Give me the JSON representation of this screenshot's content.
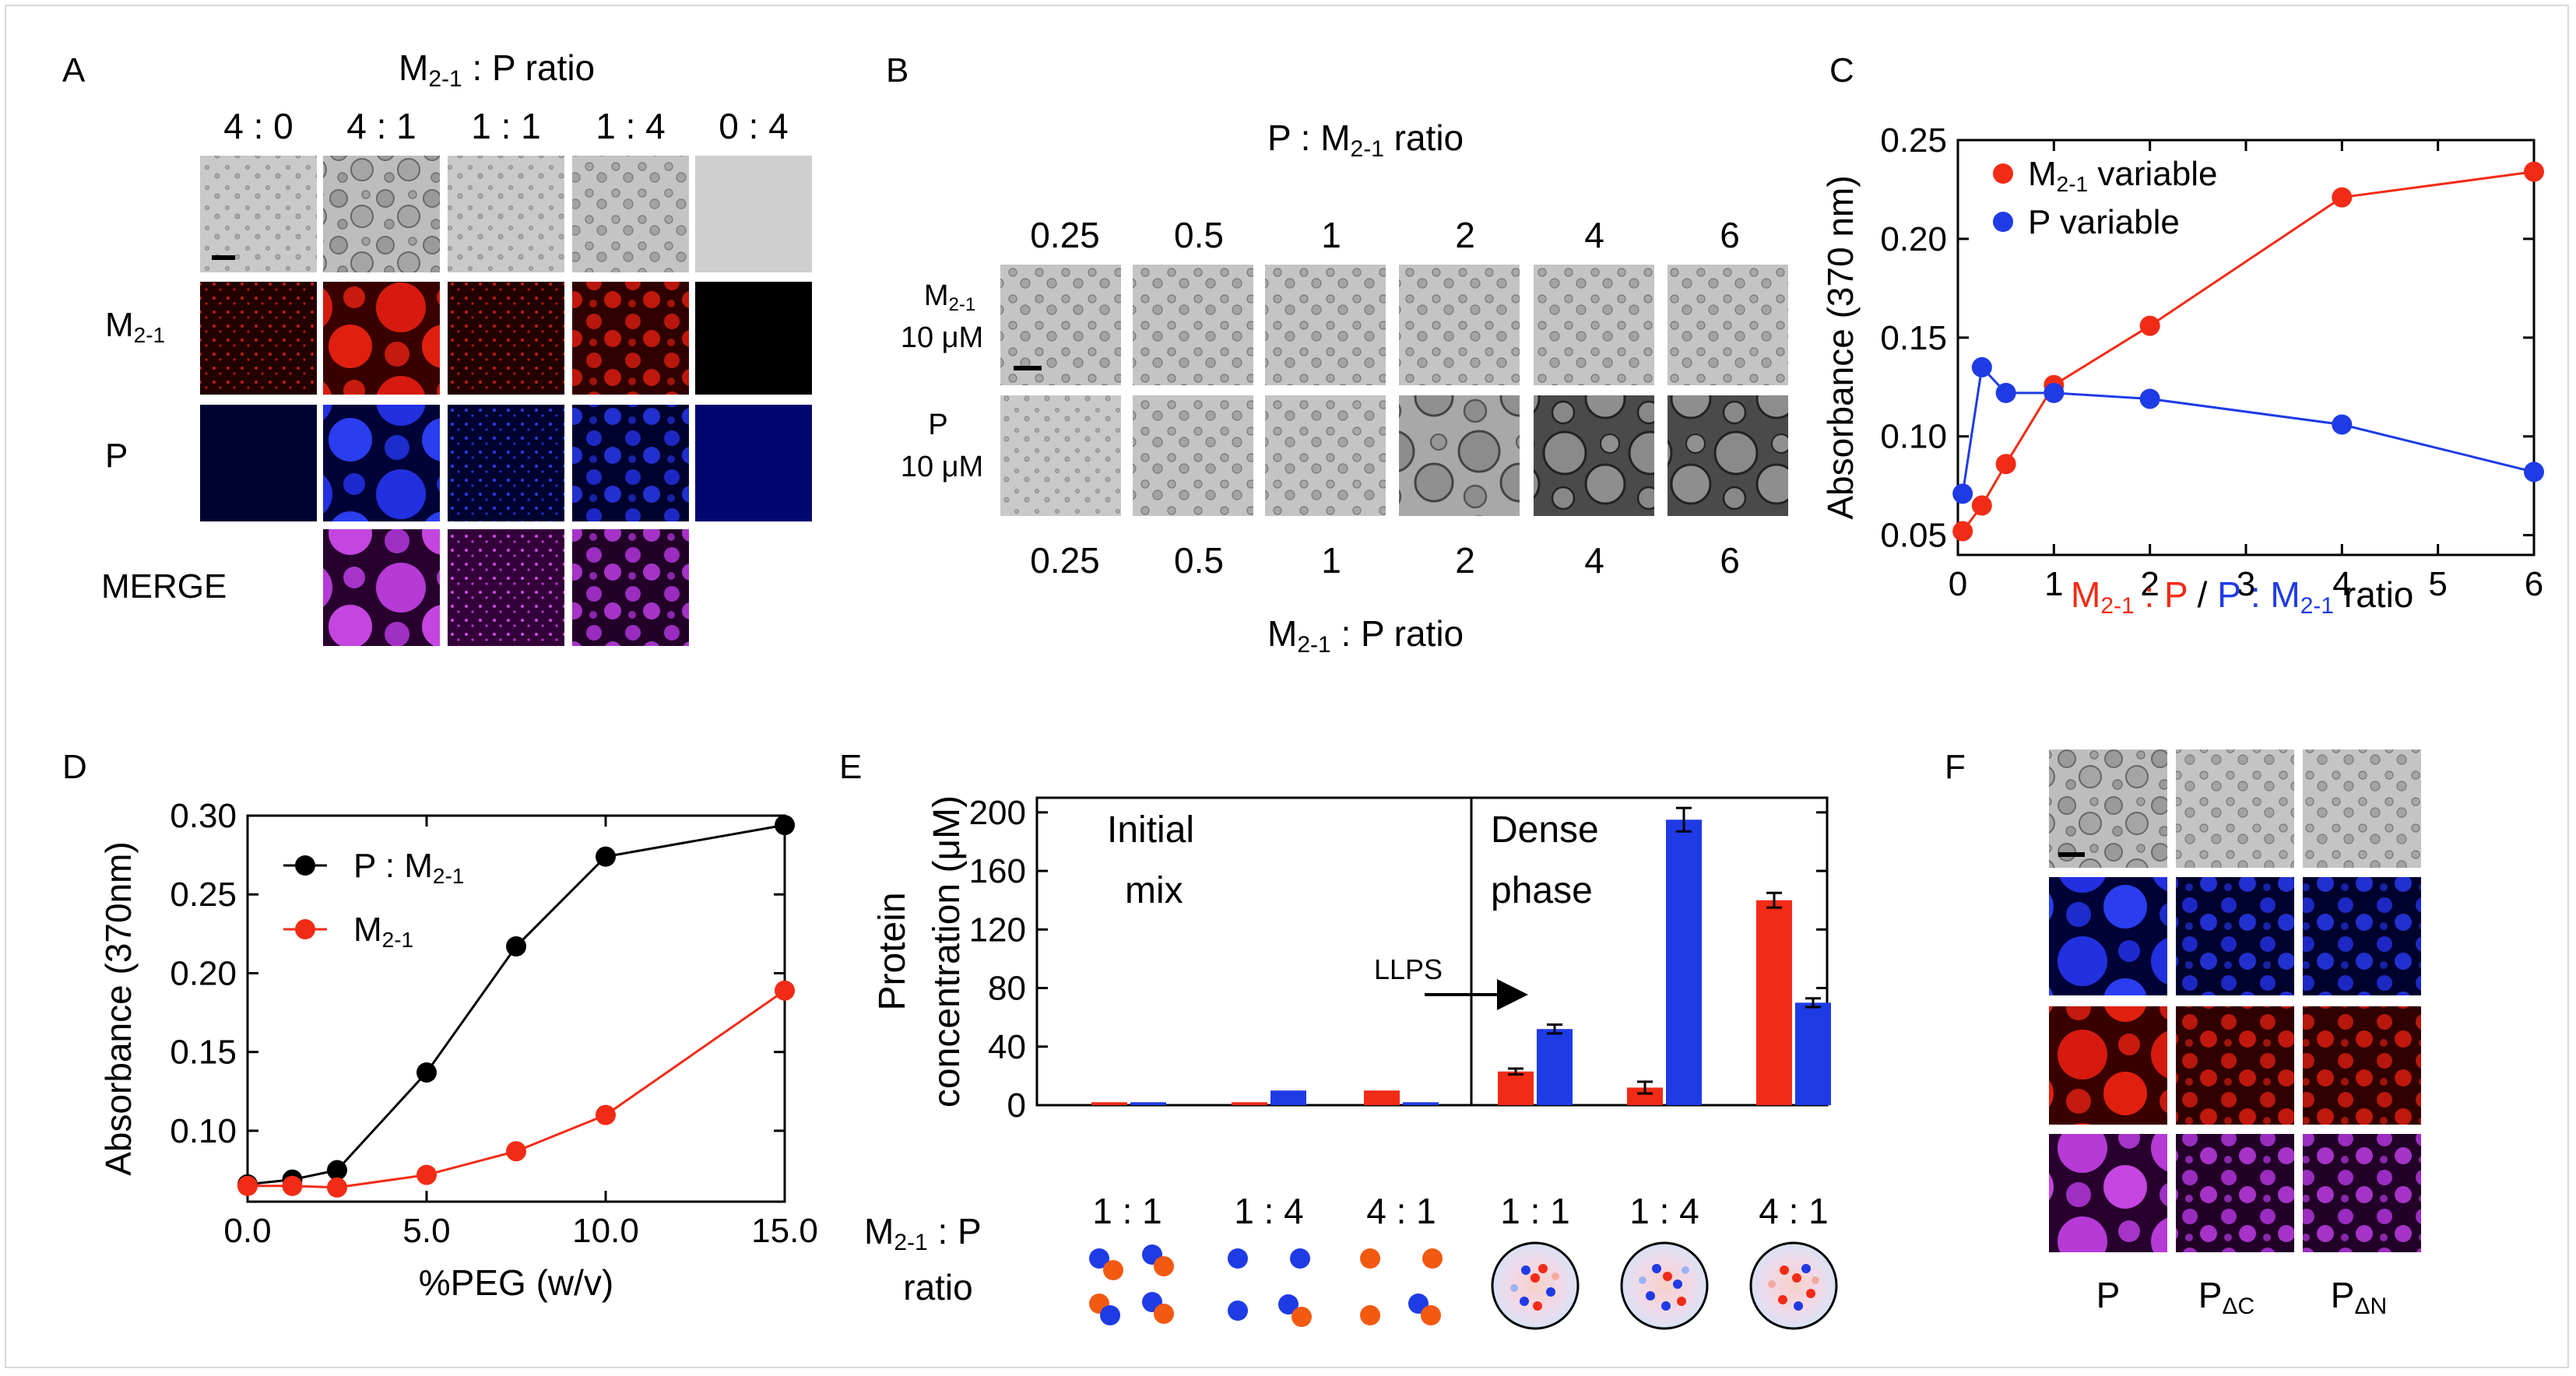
{
  "panels": {
    "A": {
      "label": "A",
      "title": "M2-1 : P ratio",
      "title_main": "M",
      "title_sub": "2-1",
      "title_rest": " : P ratio",
      "columns": [
        "4 : 0",
        "4 : 1",
        "1 : 1",
        "1 : 4",
        "0 : 4"
      ],
      "rows": [
        "",
        "M2-1",
        "P",
        "MERGE"
      ],
      "row_m_main": "M",
      "row_m_sub": "2-1",
      "row_p": "P",
      "row_merge": "MERGE"
    },
    "B": {
      "label": "B",
      "top_title_main": "P : M",
      "top_title_sub": "2-1",
      "top_title_rest": " ratio",
      "top_ticks": [
        "0.25",
        "0.5",
        "1",
        "2",
        "4",
        "6"
      ],
      "row1_main": "M",
      "row1_sub": "2-1",
      "row1_conc": "10 μM",
      "row2_main": "P",
      "row2_conc": "10 μM",
      "bottom_ticks": [
        "0.25",
        "0.5",
        "1",
        "2",
        "4",
        "6"
      ],
      "bottom_title_main": "M",
      "bottom_title_sub": "2-1",
      "bottom_title_rest": " : P ratio"
    },
    "F": {
      "label": "F",
      "columns": [
        "P",
        "PΔC",
        "PΔN"
      ],
      "col2_main": "P",
      "col2_sub": "ΔC",
      "col3_main": "P",
      "col3_sub": "ΔN"
    },
    "E_extra": {
      "initial_label_1": "Initial",
      "initial_label_2": "mix",
      "dense_label_1": "Dense",
      "dense_label_2": "phase",
      "llps_label": "LLPS",
      "ratio_label_main": "M",
      "ratio_label_sub": "2-1",
      "ratio_label_rest": " : P",
      "ratio_label_line2": "ratio",
      "ratios": [
        "1 : 1",
        "1 : 4",
        "4 : 1",
        "1 : 1",
        "1 : 4",
        "4 : 1"
      ]
    }
  },
  "colors": {
    "red": "#f22b16",
    "blue": "#1f3be6",
    "black": "#000000"
  },
  "chart_data": [
    {
      "panel": "C",
      "label": "C",
      "type": "line",
      "ylabel": "Absorbance (370 nm)",
      "xlabel": "M2-1 : P / P : M2-1 ratio",
      "xlabel_parts": [
        "M",
        "2-1",
        " : P",
        " / ",
        "P : M",
        "2-1",
        " ratio"
      ],
      "ylim": [
        0.04,
        0.25
      ],
      "xlim": [
        0,
        6
      ],
      "yticks": [
        "0.05",
        "0.10",
        "0.15",
        "0.20",
        "0.25"
      ],
      "xticks": [
        "0",
        "1",
        "2",
        "3",
        "4",
        "5",
        "6"
      ],
      "legend_position": "top-left",
      "series": [
        {
          "name": "M2-1 variable",
          "name_main": "M",
          "name_sub": "2-1",
          "name_rest": " variable",
          "color": "#f22b16",
          "x": [
            0.05,
            0.25,
            0.5,
            1,
            2,
            4,
            6
          ],
          "y": [
            0.052,
            0.065,
            0.086,
            0.126,
            0.156,
            0.221,
            0.234
          ]
        },
        {
          "name": "P variable",
          "color": "#1f3be6",
          "x": [
            0.05,
            0.25,
            0.5,
            1,
            2,
            4,
            6
          ],
          "y": [
            0.071,
            0.135,
            0.122,
            0.122,
            0.119,
            0.106,
            0.082
          ]
        }
      ]
    },
    {
      "panel": "D",
      "label": "D",
      "type": "line",
      "ylabel": "Absorbance (370nm)",
      "xlabel": "%PEG (w/v)",
      "ylim": [
        0.055,
        0.3
      ],
      "xlim": [
        0,
        15
      ],
      "yticks": [
        "0.10",
        "0.15",
        "0.20",
        "0.25",
        "0.30"
      ],
      "xticks": [
        "0.0",
        "5.0",
        "10.0",
        "15.0"
      ],
      "legend_position": "top-left",
      "series": [
        {
          "name": "P : M2-1",
          "name_main": "P : M",
          "name_sub": "2-1",
          "color": "#000000",
          "x": [
            0,
            1.25,
            2.5,
            5,
            7.5,
            10,
            15
          ],
          "y": [
            0.066,
            0.069,
            0.075,
            0.137,
            0.217,
            0.274,
            0.294
          ]
        },
        {
          "name": "M2-1",
          "name_main": "M",
          "name_sub": "2-1",
          "color": "#f22b16",
          "x": [
            0,
            1.25,
            2.5,
            5,
            7.5,
            10,
            15
          ],
          "y": [
            0.065,
            0.065,
            0.064,
            0.072,
            0.087,
            0.11,
            0.189
          ]
        }
      ]
    },
    {
      "panel": "E",
      "label": "E",
      "type": "bar",
      "ylabel_1": "Protein",
      "ylabel_2": "concentration (μM)",
      "ylim": [
        0,
        210
      ],
      "yticks": [
        "0",
        "40",
        "80",
        "120",
        "160",
        "200"
      ],
      "groups": [
        "1 : 1",
        "1 : 4",
        "4 : 1",
        "1 : 1",
        "1 : 4",
        "4 : 1"
      ],
      "series": [
        {
          "name": "M2-1",
          "color": "#f22b16",
          "values": [
            2,
            2,
            10,
            23,
            12,
            140
          ],
          "errors": [
            0,
            0,
            0,
            2,
            4,
            5
          ]
        },
        {
          "name": "P",
          "color": "#1f3be6",
          "values": [
            2,
            10,
            2,
            52,
            195,
            70
          ],
          "errors": [
            0,
            0,
            0,
            3,
            8,
            3
          ]
        }
      ]
    }
  ]
}
